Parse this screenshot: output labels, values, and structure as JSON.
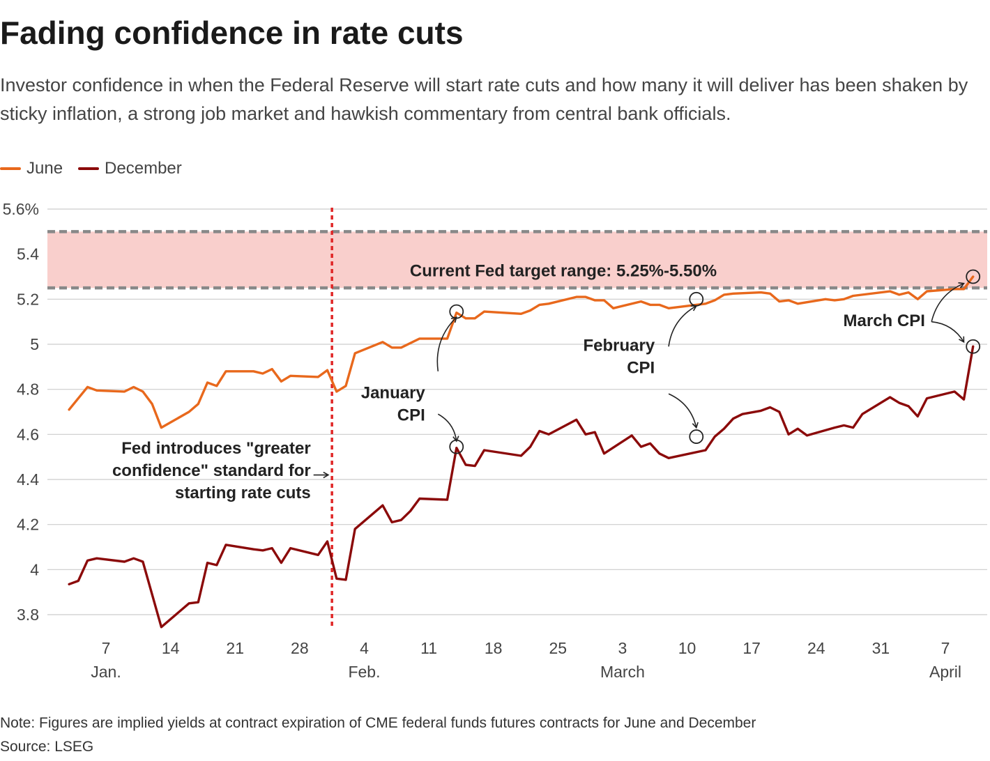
{
  "header": {
    "title": "Fading confidence in rate cuts",
    "subtitle": "Investor confidence in when the Federal Reserve will start rate cuts and how many it will deliver has been shaken by sticky inflation, a strong job market and hawkish commentary from central bank officials."
  },
  "footer": {
    "note": "Note: Figures are implied yields at contract expiration of CME federal funds futures contracts for June and December",
    "source": "Source: LSEG"
  },
  "colors": {
    "june": "#e8681c",
    "december": "#8b0a0a",
    "band": "#f9cfcc",
    "band_line": "#888888",
    "event_line": "#e02626",
    "grid": "#cccccc"
  },
  "chart_data": {
    "type": "line",
    "x_unit": "day number of 2024 (1 = Jan. 1)",
    "ylim": [
      3.7,
      5.6
    ],
    "xlim": [
      2,
      99
    ],
    "y_ticks": [
      {
        "value": 5.6,
        "label": "5.6%"
      },
      {
        "value": 5.4,
        "label": "5.4"
      },
      {
        "value": 5.2,
        "label": "5.2"
      },
      {
        "value": 5.0,
        "label": "5"
      },
      {
        "value": 4.8,
        "label": "4.8"
      },
      {
        "value": 4.6,
        "label": "4.6"
      },
      {
        "value": 4.4,
        "label": "4.4"
      },
      {
        "value": 4.2,
        "label": "4.2"
      },
      {
        "value": 4.0,
        "label": "4"
      },
      {
        "value": 3.8,
        "label": "3.8"
      }
    ],
    "x_ticks": [
      {
        "day": 7,
        "label": "7",
        "month": "Jan."
      },
      {
        "day": 14,
        "label": "14",
        "month": ""
      },
      {
        "day": 21,
        "label": "21",
        "month": ""
      },
      {
        "day": 28,
        "label": "28",
        "month": ""
      },
      {
        "day": 35,
        "label": "4",
        "month": "Feb."
      },
      {
        "day": 42,
        "label": "11",
        "month": ""
      },
      {
        "day": 49,
        "label": "18",
        "month": ""
      },
      {
        "day": 56,
        "label": "25",
        "month": ""
      },
      {
        "day": 63,
        "label": "3",
        "month": "March"
      },
      {
        "day": 70,
        "label": "10",
        "month": ""
      },
      {
        "day": 77,
        "label": "17",
        "month": ""
      },
      {
        "day": 84,
        "label": "24",
        "month": ""
      },
      {
        "day": 91,
        "label": "31",
        "month": ""
      },
      {
        "day": 98,
        "label": "7",
        "month": "April"
      }
    ],
    "band": {
      "low": 5.25,
      "high": 5.5,
      "label": "Current Fed target range: 5.25%-5.50%"
    },
    "event_line": {
      "day": 31.5
    },
    "series": [
      {
        "name": "June",
        "color": "#e8681c",
        "points": [
          [
            3,
            4.71
          ],
          [
            4,
            4.76
          ],
          [
            5,
            4.81
          ],
          [
            6,
            4.795
          ],
          [
            9,
            4.79
          ],
          [
            10,
            4.81
          ],
          [
            11,
            4.79
          ],
          [
            12,
            4.735
          ],
          [
            13,
            4.63
          ],
          [
            16,
            4.7
          ],
          [
            17,
            4.735
          ],
          [
            18,
            4.83
          ],
          [
            19,
            4.815
          ],
          [
            20,
            4.88
          ],
          [
            23,
            4.88
          ],
          [
            24,
            4.87
          ],
          [
            25,
            4.89
          ],
          [
            26,
            4.835
          ],
          [
            27,
            4.86
          ],
          [
            30,
            4.855
          ],
          [
            31,
            4.885
          ],
          [
            32,
            4.79
          ],
          [
            33,
            4.815
          ],
          [
            34,
            4.96
          ],
          [
            37,
            5.01
          ],
          [
            38,
            4.985
          ],
          [
            39,
            4.985
          ],
          [
            41,
            5.025
          ],
          [
            44,
            5.025
          ],
          [
            45,
            5.14
          ],
          [
            46,
            5.115
          ],
          [
            47,
            5.115
          ],
          [
            48,
            5.145
          ],
          [
            52,
            5.135
          ],
          [
            53,
            5.15
          ],
          [
            54,
            5.175
          ],
          [
            55,
            5.18
          ],
          [
            58,
            5.21
          ],
          [
            59,
            5.21
          ],
          [
            60,
            5.195
          ],
          [
            61,
            5.195
          ],
          [
            62,
            5.16
          ],
          [
            65,
            5.19
          ],
          [
            66,
            5.175
          ],
          [
            67,
            5.175
          ],
          [
            68,
            5.16
          ],
          [
            72,
            5.18
          ],
          [
            73,
            5.195
          ],
          [
            74,
            5.22
          ],
          [
            75,
            5.225
          ],
          [
            78,
            5.23
          ],
          [
            79,
            5.225
          ],
          [
            80,
            5.19
          ],
          [
            81,
            5.195
          ],
          [
            82,
            5.18
          ],
          [
            85,
            5.2
          ],
          [
            86,
            5.195
          ],
          [
            87,
            5.2
          ],
          [
            88,
            5.215
          ],
          [
            92,
            5.235
          ],
          [
            93,
            5.22
          ],
          [
            94,
            5.23
          ],
          [
            95,
            5.2
          ],
          [
            96,
            5.235
          ],
          [
            99,
            5.245
          ],
          [
            100,
            5.245
          ],
          [
            101,
            5.3
          ]
        ]
      },
      {
        "name": "December",
        "color": "#8b0a0a",
        "points": [
          [
            3,
            3.935
          ],
          [
            4,
            3.95
          ],
          [
            5,
            4.04
          ],
          [
            6,
            4.05
          ],
          [
            9,
            4.035
          ],
          [
            10,
            4.05
          ],
          [
            11,
            4.035
          ],
          [
            13,
            3.745
          ],
          [
            16,
            3.85
          ],
          [
            17,
            3.855
          ],
          [
            18,
            4.03
          ],
          [
            19,
            4.02
          ],
          [
            20,
            4.11
          ],
          [
            23,
            4.09
          ],
          [
            24,
            4.085
          ],
          [
            25,
            4.095
          ],
          [
            26,
            4.03
          ],
          [
            27,
            4.095
          ],
          [
            30,
            4.065
          ],
          [
            31,
            4.125
          ],
          [
            32,
            3.96
          ],
          [
            33,
            3.955
          ],
          [
            34,
            4.18
          ],
          [
            37,
            4.285
          ],
          [
            38,
            4.21
          ],
          [
            39,
            4.22
          ],
          [
            40,
            4.26
          ],
          [
            41,
            4.315
          ],
          [
            44,
            4.31
          ],
          [
            45,
            4.54
          ],
          [
            46,
            4.465
          ],
          [
            47,
            4.46
          ],
          [
            48,
            4.53
          ],
          [
            52,
            4.505
          ],
          [
            53,
            4.545
          ],
          [
            54,
            4.615
          ],
          [
            55,
            4.6
          ],
          [
            58,
            4.665
          ],
          [
            59,
            4.6
          ],
          [
            60,
            4.61
          ],
          [
            61,
            4.515
          ],
          [
            64,
            4.595
          ],
          [
            65,
            4.545
          ],
          [
            66,
            4.56
          ],
          [
            67,
            4.515
          ],
          [
            68,
            4.495
          ],
          [
            72,
            4.53
          ],
          [
            73,
            4.59
          ],
          [
            74,
            4.625
          ],
          [
            75,
            4.67
          ],
          [
            76,
            4.69
          ],
          [
            78,
            4.705
          ],
          [
            79,
            4.72
          ],
          [
            80,
            4.7
          ],
          [
            81,
            4.6
          ],
          [
            82,
            4.625
          ],
          [
            83,
            4.595
          ],
          [
            86,
            4.63
          ],
          [
            87,
            4.64
          ],
          [
            88,
            4.63
          ],
          [
            89,
            4.69
          ],
          [
            92,
            4.765
          ],
          [
            93,
            4.74
          ],
          [
            94,
            4.725
          ],
          [
            95,
            4.68
          ],
          [
            96,
            4.76
          ],
          [
            99,
            4.79
          ],
          [
            100,
            4.755
          ],
          [
            101,
            4.99
          ]
        ]
      }
    ],
    "annotations": [
      {
        "lines": [
          "January",
          "CPI"
        ],
        "align": "end",
        "anchor_day": 41.6,
        "anchor_value": 4.76,
        "line_gap": 32,
        "bold": true,
        "arrows": [
          {
            "from_day": 43,
            "from_value": 4.88,
            "to_day": 45,
            "to_value": 5.12
          },
          {
            "from_day": 43,
            "from_value": 4.69,
            "to_day": 45,
            "to_value": 4.57
          }
        ]
      },
      {
        "lines": [
          "February",
          "CPI"
        ],
        "align": "end",
        "anchor_day": 66.5,
        "anchor_value": 4.97,
        "line_gap": 32,
        "bold": true,
        "arrows": [
          {
            "from_day": 68,
            "from_value": 4.99,
            "to_day": 71,
            "to_value": 5.17
          },
          {
            "from_day": 68,
            "from_value": 4.78,
            "to_day": 71,
            "to_value": 4.63
          }
        ]
      },
      {
        "lines": [
          "March CPI"
        ],
        "align": "end",
        "anchor_day": 95.8,
        "anchor_value": 5.08,
        "line_gap": 32,
        "bold": true,
        "arrows": [
          {
            "from_day": 96.5,
            "from_value": 5.1,
            "to_day": 100,
            "to_value": 5.27
          },
          {
            "from_day": 96.5,
            "from_value": 5.1,
            "to_day": 100,
            "to_value": 5.01
          }
        ]
      },
      {
        "lines": [
          "Fed introduces \"greater",
          "confidence\" standard for",
          "starting rate cuts"
        ],
        "align": "end",
        "anchor_day": 29.2,
        "anchor_value": 4.515,
        "line_gap": 32,
        "bold": true,
        "arrows": [
          {
            "from_day": 29.5,
            "from_value": 4.42,
            "to_day": 31.1,
            "to_value": 4.42
          }
        ]
      }
    ],
    "markers": [
      {
        "day": 45,
        "value": 5.145
      },
      {
        "day": 45,
        "value": 4.545
      },
      {
        "day": 71,
        "value": 5.2
      },
      {
        "day": 71,
        "value": 4.59
      },
      {
        "day": 101,
        "value": 5.3
      },
      {
        "day": 101,
        "value": 4.99
      }
    ]
  }
}
